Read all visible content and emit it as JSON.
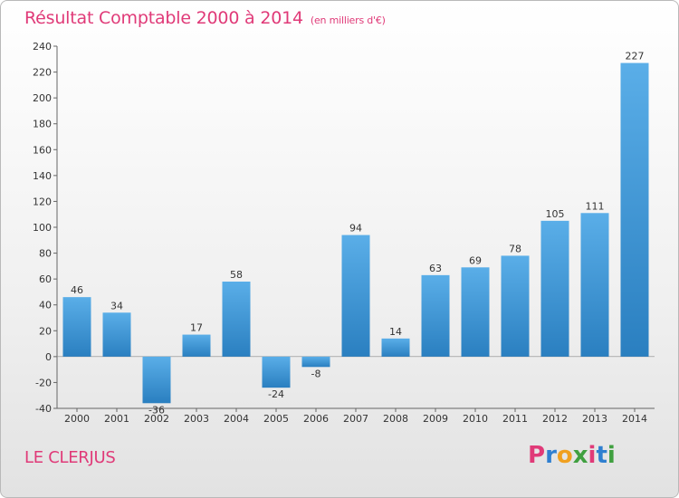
{
  "header": {
    "title": "Résultat Comptable 2000 à 2014",
    "unit": "(en milliers d'€)"
  },
  "footer": {
    "commune": "LE CLERJUS",
    "brand": "Proxiti",
    "brand_colors": [
      "#e03a78",
      "#2f7fd0",
      "#f0a020",
      "#40a040",
      "#e03a78",
      "#2f7fd0",
      "#40a040"
    ]
  },
  "chart_data": {
    "type": "bar",
    "categories": [
      "2000",
      "2001",
      "2002",
      "2003",
      "2004",
      "2005",
      "2006",
      "2007",
      "2008",
      "2009",
      "2010",
      "2011",
      "2012",
      "2013",
      "2014"
    ],
    "values": [
      46,
      34,
      -36,
      17,
      58,
      -24,
      -8,
      94,
      14,
      63,
      69,
      78,
      105,
      111,
      227
    ],
    "ylim": [
      -40,
      240
    ],
    "yticks": [
      -40,
      -20,
      0,
      20,
      40,
      60,
      80,
      100,
      120,
      140,
      160,
      180,
      200,
      220,
      240
    ],
    "grid": false,
    "bar_color_top": "#5aaee8",
    "bar_color_bottom": "#2a7fc0"
  }
}
